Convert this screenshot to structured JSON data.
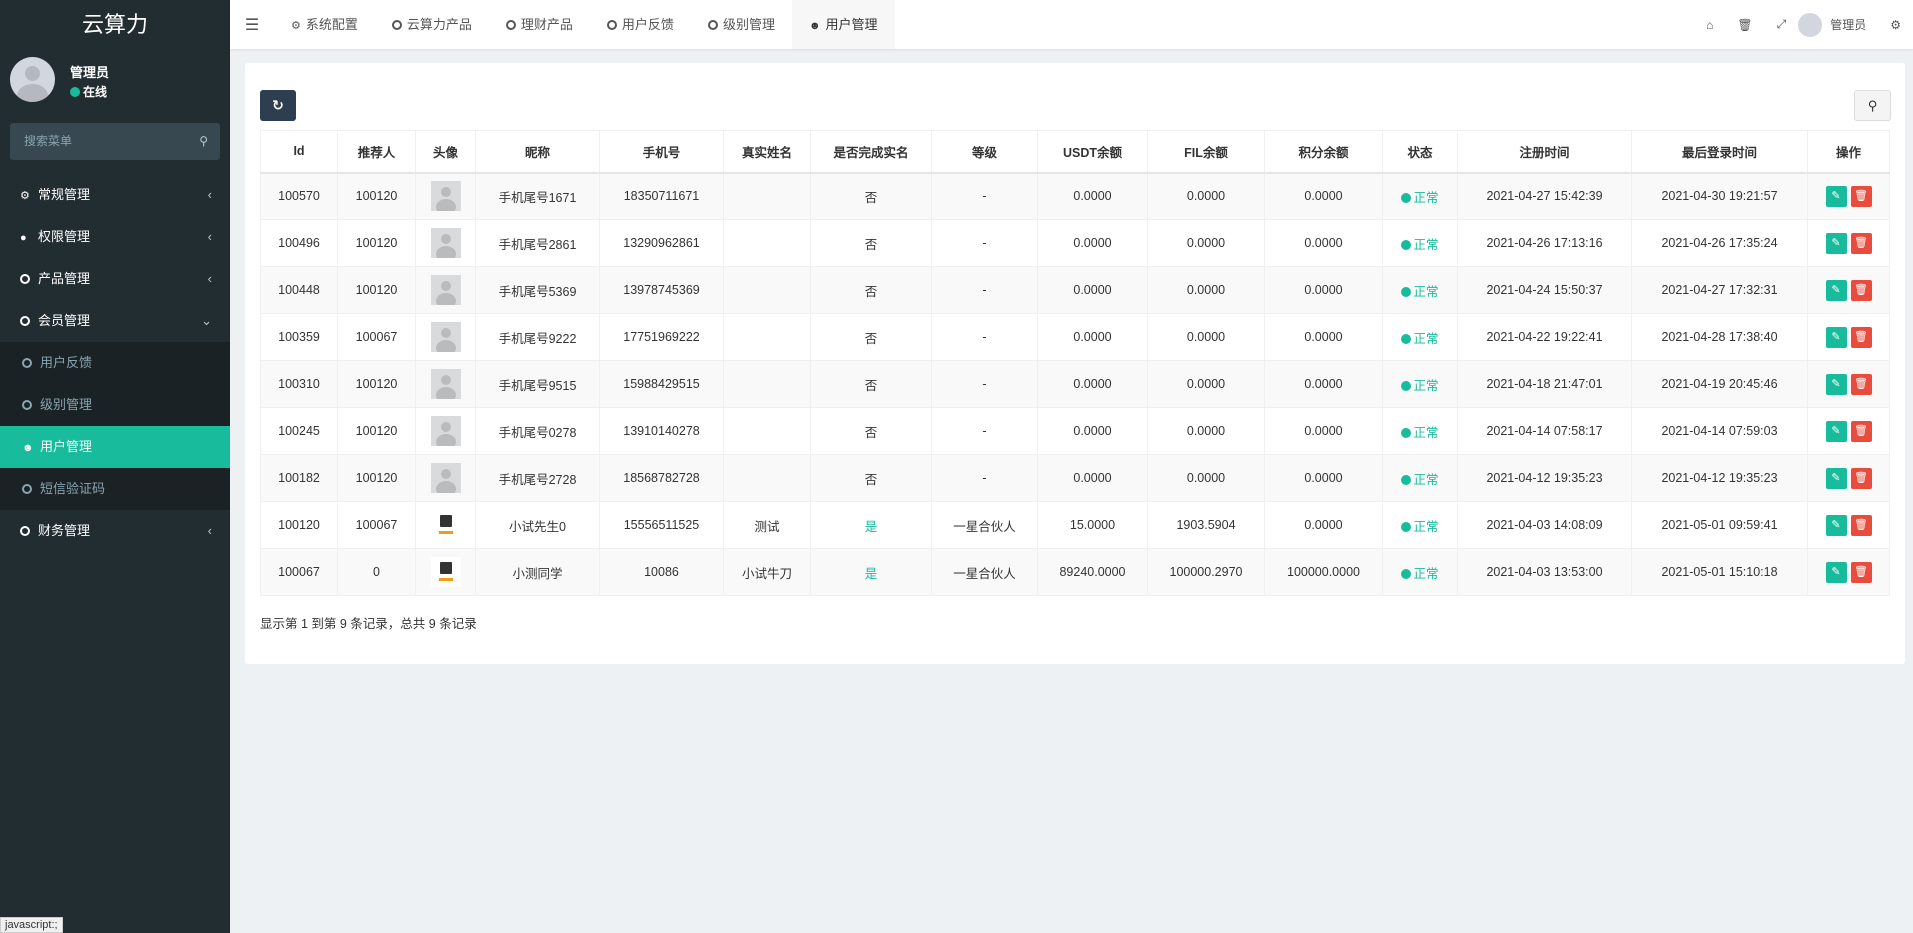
{
  "app": {
    "title": "云算力"
  },
  "user": {
    "name": "管理员",
    "status": "在线"
  },
  "sidebar": {
    "search_placeholder": "搜索菜单",
    "items": [
      {
        "label": "常规管理",
        "icon": "cogs-icon"
      },
      {
        "label": "权限管理",
        "icon": "users-icon"
      },
      {
        "label": "产品管理",
        "icon": "circle-icon"
      },
      {
        "label": "会员管理",
        "icon": "circle-icon"
      }
    ],
    "sub": [
      {
        "label": "用户反馈"
      },
      {
        "label": "级别管理"
      },
      {
        "label": "用户管理"
      },
      {
        "label": "短信验证码"
      }
    ],
    "after": [
      {
        "label": "财务管理"
      }
    ]
  },
  "header": {
    "tabs": [
      {
        "label": "系统配置"
      },
      {
        "label": "云算力产品"
      },
      {
        "label": "理财产品"
      },
      {
        "label": "用户反馈"
      },
      {
        "label": "级别管理"
      },
      {
        "label": "用户管理"
      }
    ],
    "user": "管理员"
  },
  "table": {
    "columns": [
      "Id",
      "推荐人",
      "头像",
      "昵称",
      "手机号",
      "真实姓名",
      "是否完成实名",
      "等级",
      "USDT余额",
      "FIL余额",
      "积分余额",
      "状态",
      "注册时间",
      "最后登录时间",
      "操作"
    ],
    "rows": [
      [
        "100570",
        "100120",
        "default",
        "手机尾号1671",
        "18350711671",
        "",
        "否",
        "-",
        "0.0000",
        "0.0000",
        "0.0000",
        "正常",
        "2021-04-27 15:42:39",
        "2021-04-30 19:21:57"
      ],
      [
        "100496",
        "100120",
        "default",
        "手机尾号2861",
        "13290962861",
        "",
        "否",
        "-",
        "0.0000",
        "0.0000",
        "0.0000",
        "正常",
        "2021-04-26 17:13:16",
        "2021-04-26 17:35:24"
      ],
      [
        "100448",
        "100120",
        "default",
        "手机尾号5369",
        "13978745369",
        "",
        "否",
        "-",
        "0.0000",
        "0.0000",
        "0.0000",
        "正常",
        "2021-04-24 15:50:37",
        "2021-04-27 17:32:31"
      ],
      [
        "100359",
        "100067",
        "default",
        "手机尾号9222",
        "17751969222",
        "",
        "否",
        "-",
        "0.0000",
        "0.0000",
        "0.0000",
        "正常",
        "2021-04-22 19:22:41",
        "2021-04-28 17:38:40"
      ],
      [
        "100310",
        "100120",
        "default",
        "手机尾号9515",
        "15988429515",
        "",
        "否",
        "-",
        "0.0000",
        "0.0000",
        "0.0000",
        "正常",
        "2021-04-18 21:47:01",
        "2021-04-19 20:45:46"
      ],
      [
        "100245",
        "100120",
        "default",
        "手机尾号0278",
        "13910140278",
        "",
        "否",
        "-",
        "0.0000",
        "0.0000",
        "0.0000",
        "正常",
        "2021-04-14 07:58:17",
        "2021-04-14 07:59:03"
      ],
      [
        "100182",
        "100120",
        "default",
        "手机尾号2728",
        "18568782728",
        "",
        "否",
        "-",
        "0.0000",
        "0.0000",
        "0.0000",
        "正常",
        "2021-04-12 19:35:23",
        "2021-04-12 19:35:23"
      ],
      [
        "100120",
        "100067",
        "logo",
        "小试先生0",
        "15556511525",
        "测试",
        "是",
        "一星合伙人",
        "15.0000",
        "1903.5904",
        "0.0000",
        "正常",
        "2021-04-03 14:08:09",
        "2021-05-01 09:59:41"
      ],
      [
        "100067",
        "0",
        "logo",
        "小测同学",
        "10086",
        "小试牛刀",
        "是",
        "一星合伙人",
        "89240.0000",
        "100000.2970",
        "100000.0000",
        "正常",
        "2021-04-03 13:53:00",
        "2021-05-01 15:10:18"
      ]
    ]
  },
  "footer": "显示第 1 到第 9 条记录，总共 9 条记录",
  "statusbar": "javascript:;",
  "colors": {
    "accent": "#18bc9c",
    "sidebar": "#222d32",
    "danger": "#e74c3c"
  }
}
